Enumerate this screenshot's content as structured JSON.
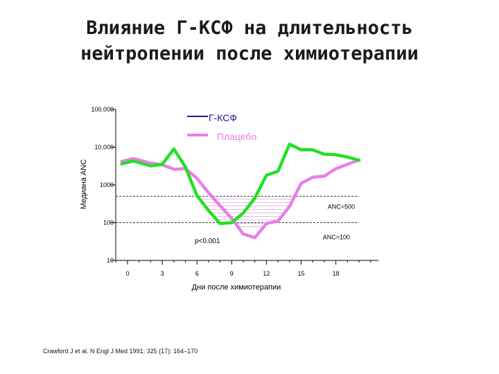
{
  "title_line1": "Влияние Г-КСФ на длительность",
  "title_line2": "нейтропении после химиотерапии",
  "source": "Crawford J et al. N Engl J Med 1991; 325 (17): 164–170",
  "chart_data": {
    "type": "line",
    "xlabel": "Дни после химиотерапии",
    "ylabel": "Медиана ANC",
    "y_scale": "log",
    "ylim": [
      10,
      100000
    ],
    "xlim": [
      -1,
      21
    ],
    "y_ticks": [
      {
        "value": 100000,
        "label": "100,000"
      },
      {
        "value": 10000,
        "label": "10,000"
      },
      {
        "value": 1000,
        "label": "1000"
      },
      {
        "value": 100,
        "label": "100"
      },
      {
        "value": 10,
        "label": "10"
      }
    ],
    "x_ticks": [
      0,
      3,
      6,
      9,
      12,
      15,
      18
    ],
    "reference_lines": [
      {
        "label": "ANC=500",
        "value": 500
      },
      {
        "label": "ANC=100",
        "value": 100
      }
    ],
    "annotation": "p<0.001",
    "series": [
      {
        "name": "Г-КСФ",
        "color": "#22e022",
        "x": [
          -0.5,
          0.5,
          2,
          3,
          4,
          5,
          6,
          7,
          8,
          9,
          10,
          11,
          12,
          13,
          14,
          15,
          16,
          17,
          18,
          19,
          20
        ],
        "y": [
          3600,
          4300,
          3200,
          3500,
          9000,
          3000,
          520,
          210,
          95,
          100,
          180,
          450,
          1800,
          2300,
          12000,
          8500,
          8500,
          6500,
          6300,
          5500,
          4500
        ]
      },
      {
        "name": "Плацебо",
        "color": "#e87ee8",
        "x": [
          -0.5,
          0.5,
          2,
          3,
          4,
          5,
          6,
          7,
          8,
          9,
          10,
          11,
          12,
          13,
          14,
          15,
          16,
          17,
          18,
          19,
          20
        ],
        "y": [
          4200,
          5000,
          3800,
          3400,
          2600,
          2700,
          1500,
          620,
          280,
          130,
          50,
          40,
          95,
          110,
          270,
          1100,
          1600,
          1700,
          2700,
          3500,
          4600
        ]
      }
    ]
  }
}
